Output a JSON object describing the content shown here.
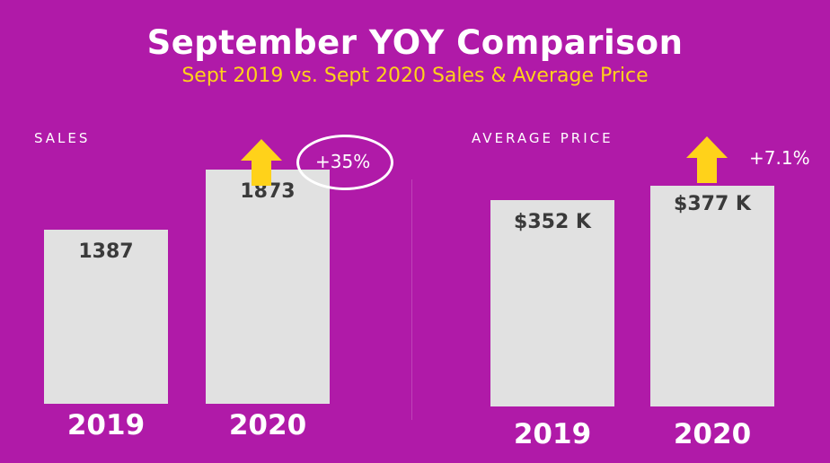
{
  "chart_data": [
    {
      "type": "bar",
      "title": "September YOY Comparison",
      "subtitle": "Sept 2019 vs. Sept 2020 Sales & Average Price",
      "panel_label": "SALES",
      "categories": [
        "2019",
        "2020"
      ],
      "values": [
        1387,
        1873
      ],
      "data_labels": [
        "1387",
        "1873"
      ],
      "change_label": "+35%",
      "colors": {
        "bar": "#e1e1e1",
        "arrow": "#ffd21a"
      },
      "value_scale_max": 2150
    },
    {
      "type": "bar",
      "panel_label": "AVERAGE PRICE",
      "categories": [
        "2019",
        "2020"
      ],
      "values": [
        352,
        377
      ],
      "data_labels": [
        "$352 K",
        "$377 K"
      ],
      "change_label": "+7.1%",
      "colors": {
        "bar": "#e1e1e1",
        "arrow": "#ffd21a"
      },
      "value_scale_max": 413
    }
  ],
  "theme": {
    "background": "#b01aa8",
    "title_color": "#ffffff",
    "subtitle_color": "#ffd21a"
  }
}
